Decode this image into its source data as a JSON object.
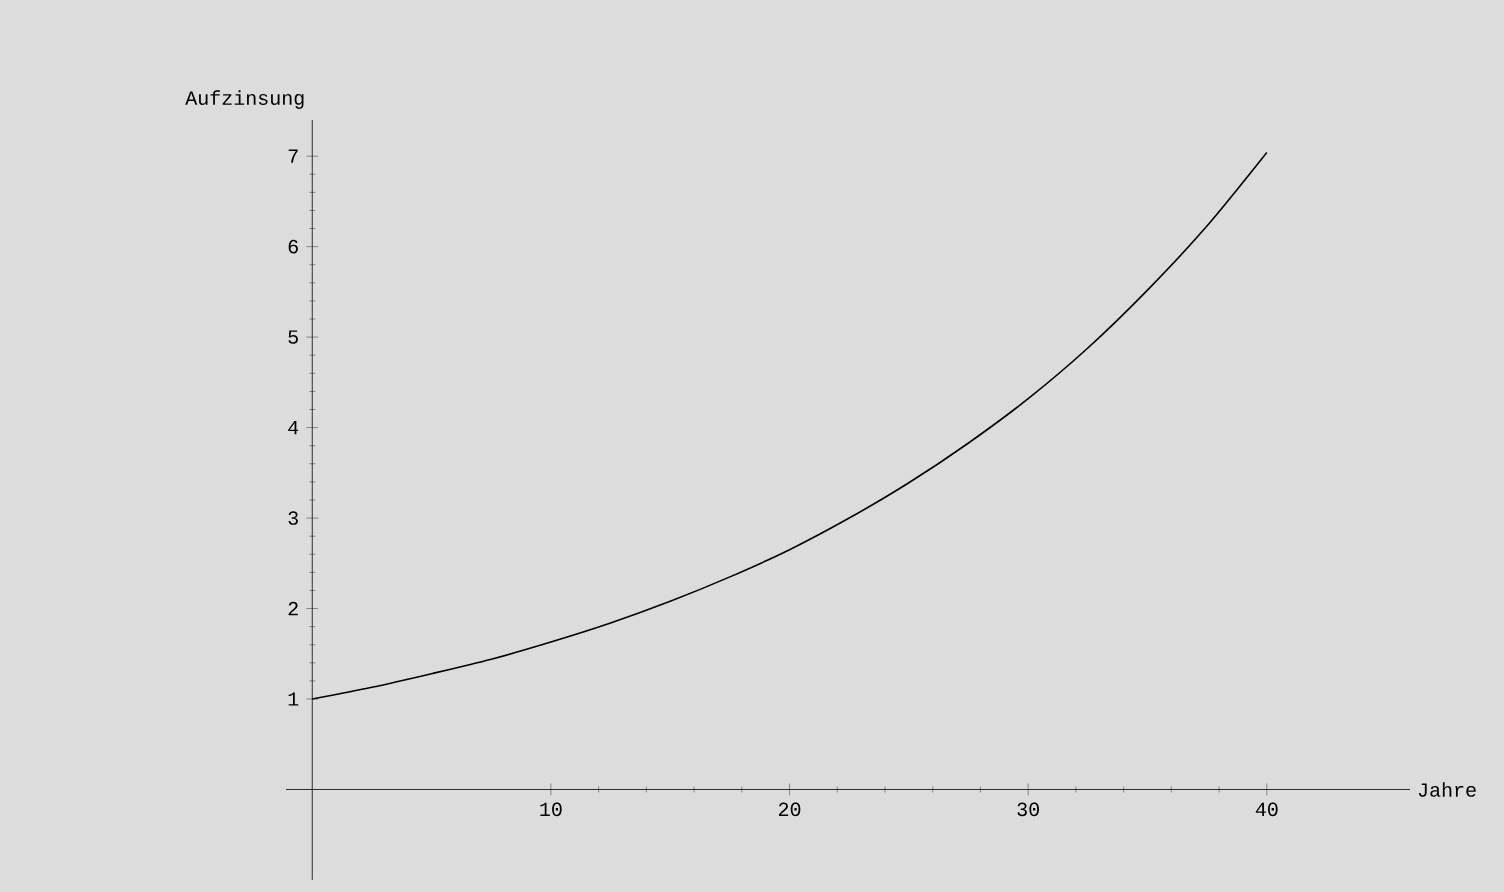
{
  "chart_data": {
    "type": "line",
    "xlabel": "Jahre",
    "ylabel": "Aufzinsung",
    "x": [
      0,
      2.5,
      5,
      7.5,
      10,
      12.5,
      15,
      17.5,
      20,
      22.5,
      25,
      27.5,
      30,
      32.5,
      35,
      37.5,
      40
    ],
    "series": [
      {
        "color": "#000000",
        "values": [
          1.0,
          1.13,
          1.28,
          1.44,
          1.63,
          1.84,
          2.08,
          2.35,
          2.65,
          3.0,
          3.39,
          3.83,
          4.32,
          4.88,
          5.52,
          6.23,
          7.04
        ]
      }
    ],
    "xlim": [
      -1.1,
      46
    ],
    "ylim": [
      -1,
      7.4
    ],
    "xticks": [
      10,
      20,
      30,
      40
    ],
    "yticks": [
      1,
      2,
      3,
      4,
      5,
      6,
      7
    ],
    "grid": false,
    "marker": "none",
    "line_style": "solid"
  }
}
